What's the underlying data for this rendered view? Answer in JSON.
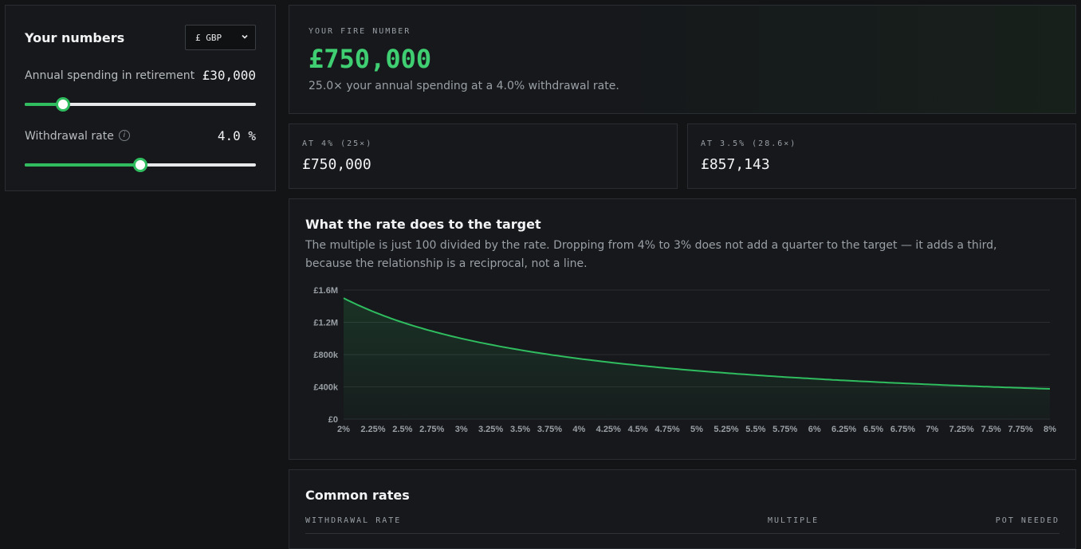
{
  "inputs": {
    "title": "Your numbers",
    "currency": {
      "selected": "£ GBP"
    },
    "spending": {
      "label": "Annual spending in retirement",
      "value": "£30,000",
      "level": 0.167
    },
    "rate": {
      "label": "Withdrawal rate",
      "value": "4.0 %",
      "info_icon": "info-icon",
      "level": 0.5
    }
  },
  "hero": {
    "eyebrow": "YOUR FIRE NUMBER",
    "amount": "£750,000",
    "subtitle": "25.0× your annual spending at a 4.0% withdrawal rate."
  },
  "stats": [
    {
      "label": "AT 4% (25×)",
      "value": "£750,000"
    },
    {
      "label": "AT 3.5% (28.6×)",
      "value": "£857,143"
    }
  ],
  "chart_section": {
    "title": "What the rate does to the target",
    "description": "The multiple is just 100 divided by the rate. Dropping from 4% to 3% does not add a quarter to the target — it adds a third, because the relationship is a reciprocal, not a line."
  },
  "chart_data": {
    "type": "area",
    "x": [
      2,
      2.25,
      2.5,
      2.75,
      3,
      3.25,
      3.5,
      3.75,
      4,
      4.25,
      4.5,
      4.75,
      5,
      5.25,
      5.5,
      5.75,
      6,
      6.25,
      6.5,
      6.75,
      7,
      7.25,
      7.5,
      7.75,
      8
    ],
    "x_tick_labels": [
      "2%",
      "2.25%",
      "2.5%",
      "2.75%",
      "3%",
      "3.25%",
      "3.5%",
      "3.75%",
      "4%",
      "4.25%",
      "4.5%",
      "4.75%",
      "5%",
      "5.25%",
      "5.5%",
      "5.75%",
      "6%",
      "6.25%",
      "6.5%",
      "6.75%",
      "7%",
      "7.25%",
      "7.5%",
      "7.75%",
      "8%"
    ],
    "y": [
      1500000,
      1333333,
      1200000,
      1090909,
      1000000,
      923077,
      857143,
      800000,
      750000,
      705882,
      666667,
      631579,
      600000,
      571429,
      545455,
      521739,
      500000,
      480000,
      461538,
      444444,
      428571,
      413793,
      400000,
      387097,
      375000
    ],
    "y_ticks": [
      0,
      400000,
      800000,
      1200000,
      1600000
    ],
    "y_tick_labels": [
      "£0",
      "£400k",
      "£800k",
      "£1.2M",
      "£1.6M"
    ],
    "ylim": [
      0,
      1600000
    ],
    "grid": true,
    "line_color": "#2fbd5f"
  },
  "rates_table": {
    "title": "Common rates",
    "columns": [
      "WITHDRAWAL RATE",
      "MULTIPLE",
      "POT NEEDED"
    ]
  },
  "colors": {
    "accent": "#3fcf72",
    "background": "#121416",
    "card": "#16181b"
  }
}
